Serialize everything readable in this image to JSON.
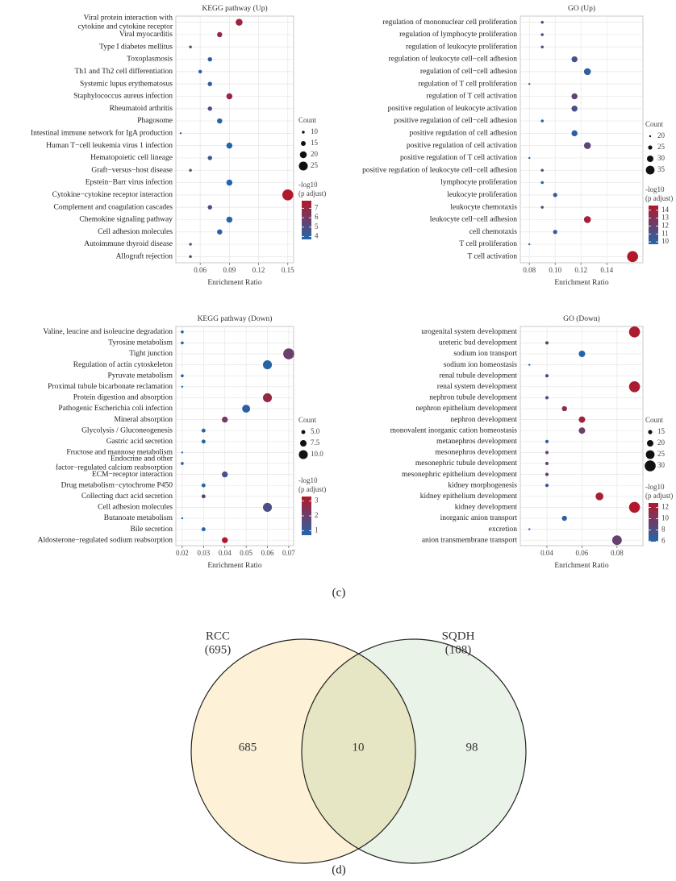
{
  "chart_data": [
    {
      "type": "dot",
      "title": "KEGG pathway (Up)",
      "xlabel": "Enrichment Ratio",
      "categories": [
        [
          "Viral protein interaction with",
          "cytokine and cytokine receptor"
        ],
        "Viral myocarditis",
        "Type I diabetes mellitus",
        "Toxoplasmosis",
        "Th1 and Th2 cell differentiation",
        "Systemic lupus erythematosus",
        "Staphylococcus aureus infection",
        "Rheumatoid arthritis",
        "Phagosome",
        "Intestinal immune network for IgA production",
        "Human T−cell leukemia virus 1 infection",
        "Hematopoietic cell lineage",
        "Graft−versus−host disease",
        "Epstein−Barr virus infection",
        "Cytokine−cytokine receptor interaction",
        "Complement and coagulation cascades",
        "Chemokine signaling pathway",
        "Cell adhesion molecules",
        "Autoimmune thyroid disease",
        "Allograft rejection"
      ],
      "values": [
        0.1,
        0.08,
        0.05,
        0.07,
        0.06,
        0.07,
        0.09,
        0.07,
        0.08,
        0.04,
        0.09,
        0.07,
        0.05,
        0.09,
        0.15,
        0.07,
        0.09,
        0.08,
        0.05,
        0.05
      ],
      "sizes": [
        20,
        16,
        10,
        14,
        12,
        14,
        18,
        14,
        16,
        8,
        18,
        14,
        10,
        18,
        30,
        14,
        18,
        16,
        10,
        10
      ],
      "color_values": [
        7.2,
        6.9,
        5.6,
        4.1,
        3.9,
        4.1,
        7.0,
        5.0,
        3.9,
        3.8,
        3.7,
        4.6,
        5.6,
        3.7,
        7.8,
        5.0,
        3.8,
        3.9,
        5.0,
        5.8
      ],
      "xlim": [
        0.035,
        0.156
      ],
      "xticks": [
        0.06,
        0.09,
        0.12,
        0.15
      ],
      "size_title": "Count",
      "size_ticks": [
        10,
        15,
        20,
        25
      ],
      "color_title": [
        "-log10",
        "(p adjust)"
      ],
      "color_ticks": [
        4,
        5,
        6,
        7
      ],
      "color_low": "#2166ac",
      "color_high": "#b2182b",
      "grid": true
    },
    {
      "type": "dot",
      "title": "GO (Up)",
      "xlabel": "Enrichment Ratio",
      "categories": [
        "regulation of mononuclear cell proliferation",
        "regulation of lymphocyte proliferation",
        "regulation of leukocyte proliferation",
        "regulation of leukocyte cell−cell adhesion",
        "regulation of cell−cell adhesion",
        "regulation of T cell proliferation",
        "regulation of T cell activation",
        "positive regulation of leukocyte activation",
        "positive regulation of cell−cell adhesion",
        "positive regulation of cell adhesion",
        "positive regulation of cell activation",
        "positive regulation of T cell activation",
        "positive regulation of leukocyte cell−cell adhesion",
        "lymphocyte proliferation",
        "leukocyte proliferation",
        "leukocyte chemotaxis",
        "leukocyte cell−cell adhesion",
        "cell chemotaxis",
        "T cell proliferation",
        "T cell activation"
      ],
      "values": [
        0.09,
        0.09,
        0.09,
        0.115,
        0.125,
        0.08,
        0.115,
        0.115,
        0.09,
        0.115,
        0.125,
        0.08,
        0.09,
        0.09,
        0.1,
        0.09,
        0.125,
        0.1,
        0.08,
        0.16
      ],
      "sizes": [
        22,
        22,
        22,
        29,
        31,
        20,
        29,
        29,
        22,
        29,
        31,
        20,
        22,
        22,
        25,
        22,
        31,
        25,
        20,
        40
      ],
      "color_values": [
        11.6,
        11.5,
        11.6,
        11.0,
        10.2,
        10.0,
        12.0,
        11.2,
        10.1,
        10.0,
        11.7,
        9.7,
        11.5,
        10.1,
        10.5,
        11.5,
        14.0,
        10.3,
        9.8,
        14.6
      ],
      "xlim": [
        0.073,
        0.168
      ],
      "xticks": [
        0.08,
        {
          "value": 0.1,
          "label": "0.10"
        },
        0.12,
        0.14
      ],
      "size_title": "Count",
      "size_ticks": [
        20,
        25,
        30,
        35
      ],
      "color_title": [
        "-log10",
        "(p adjust)"
      ],
      "color_ticks": [
        10,
        11,
        12,
        13,
        14
      ],
      "color_low": "#2166ac",
      "color_high": "#b2182b",
      "grid": true
    },
    {
      "type": "dot",
      "title": "KEGG pathway (Down)",
      "xlabel": "Enrichment Ratio",
      "categories": [
        "Valine, leucine and isoleucine degradation",
        "Tyrosine metabolism",
        "Tight junction",
        "Regulation of actin cytoskeleton",
        "Pyruvate metabolism",
        "Proximal tubule bicarbonate reclamation",
        "Protein digestion and absorption",
        "Pathogenic Escherichia coli infection",
        "Mineral absorption",
        "Glycolysis / Gluconeogenesis",
        "Gastric acid secretion",
        "Fructose and mannose metabolism",
        [
          "Endocrine and other",
          "factor−regulated calcium reabsorption"
        ],
        "ECM−receptor interaction",
        "Drug metabolism−cytochrome P450",
        "Collecting duct acid secretion",
        "Cell adhesion molecules",
        "Butanoate metabolism",
        "Bile secretion",
        "Aldosterone−regulated sodium reabsorption"
      ],
      "values": [
        0.02,
        0.02,
        0.07,
        0.06,
        0.02,
        0.02,
        0.06,
        0.05,
        0.04,
        0.03,
        0.03,
        0.02,
        0.02,
        0.04,
        0.03,
        0.03,
        0.06,
        0.02,
        0.03,
        0.04
      ],
      "sizes": [
        4,
        4,
        12,
        10,
        4,
        3,
        10,
        9,
        7,
        5,
        5,
        3,
        4,
        7,
        5,
        5,
        10,
        3,
        5,
        7
      ],
      "color_values": [
        0.8,
        0.9,
        2.0,
        0.8,
        0.8,
        0.7,
        2.8,
        0.9,
        2.2,
        0.8,
        0.8,
        0.7,
        0.8,
        1.4,
        0.8,
        1.9,
        1.5,
        0.7,
        0.8,
        3.3
      ],
      "xlim": [
        0.017,
        0.0723
      ],
      "xticks": [
        0.02,
        0.03,
        0.04,
        0.05,
        0.06,
        0.07
      ],
      "size_title": "Count",
      "size_ticks": [
        {
          "value": 5,
          "label": "5.0"
        },
        7.5,
        {
          "value": 10,
          "label": "10.0"
        }
      ],
      "color_title": [
        "-log10",
        "(p adjust)"
      ],
      "color_ticks": [
        1,
        2,
        3
      ],
      "color_low": "#2166ac",
      "color_high": "#b2182b",
      "grid": true
    },
    {
      "type": "dot",
      "title": "GO (Down)",
      "xlabel": "Enrichment Ratio",
      "categories": [
        "urogenital system development",
        "ureteric bud development",
        "sodium ion transport",
        "sodium ion homeostasis",
        "renal tubule development",
        "renal system development",
        "nephron tubule development",
        "nephron epithelium development",
        "nephron development",
        "monovalent inorganic cation homeostasis",
        "metanephros development",
        "mesonephros development",
        "mesonephric tubule development",
        "mesonephric epithelium development",
        "kidney morphogenesis",
        "kidney epithelium development",
        "kidney development",
        "inorganic anion transport",
        "excretion",
        "anion transmembrane transport"
      ],
      "values": [
        0.09,
        0.04,
        0.06,
        0.03,
        0.04,
        0.09,
        0.04,
        0.05,
        0.06,
        0.06,
        0.04,
        0.04,
        0.04,
        0.04,
        0.04,
        0.07,
        0.09,
        0.05,
        0.03,
        0.08
      ],
      "sizes": [
        30,
        13,
        20,
        10,
        13,
        30,
        13,
        17,
        20,
        20,
        13,
        13,
        13,
        13,
        13,
        23,
        30,
        17,
        10,
        27
      ],
      "color_values": [
        12.5,
        9.2,
        6.0,
        6.0,
        8.2,
        12.5,
        8.3,
        11.0,
        11.8,
        9.3,
        7.0,
        9.0,
        9.0,
        9.0,
        7.2,
        12.2,
        12.8,
        6.4,
        5.9,
        9.2
      ],
      "xlim": [
        0.0248,
        0.0948
      ],
      "xticks": [
        0.04,
        0.06,
        0.08
      ],
      "size_title": "Count",
      "size_ticks": [
        15,
        20,
        25,
        30
      ],
      "color_title": [
        "-log10",
        "(p adjust)"
      ],
      "color_ticks": [
        6,
        8,
        10,
        12
      ],
      "color_low": "#2166ac",
      "color_high": "#b2182b",
      "grid": true
    },
    {
      "type": "venn",
      "sets": [
        {
          "name": "RCC",
          "size": {
            "value": 695,
            "label": "(695)"
          },
          "only": 685,
          "color": "#fdf2d8"
        },
        {
          "name": "SQDH",
          "size": {
            "value": 108,
            "label": "(108)"
          },
          "only": 98,
          "color": "#e9f3e8"
        }
      ],
      "overlap": 10
    }
  ],
  "panel_labels": [
    "(c)",
    "(d)"
  ]
}
